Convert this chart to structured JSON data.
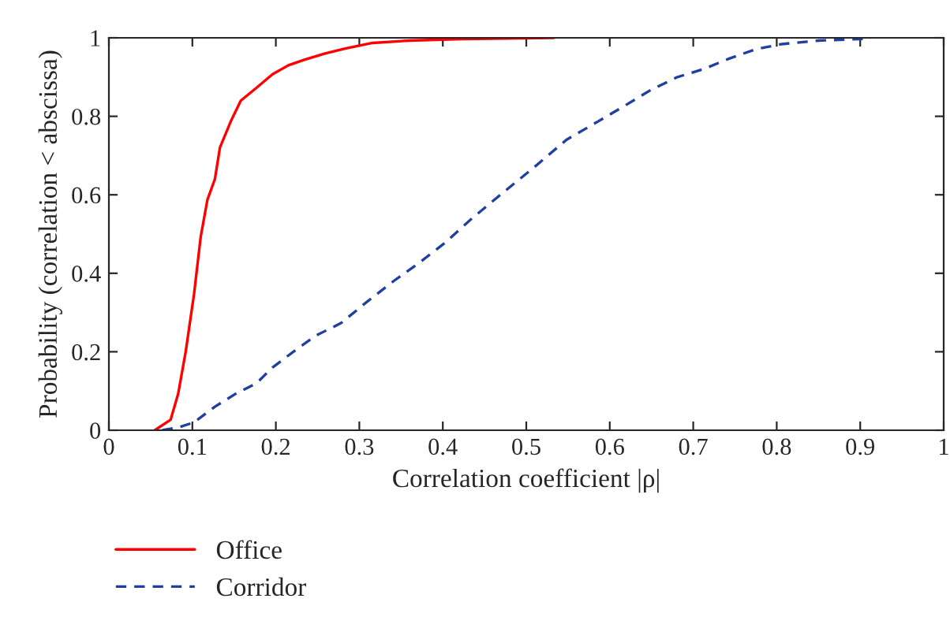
{
  "chart_data": {
    "type": "line",
    "xlabel": "Correlation coefficient |ρ|",
    "ylabel": "Probability (correlation < abscissa)",
    "xlim": [
      0,
      1
    ],
    "ylim": [
      0,
      1
    ],
    "xticks": [
      0,
      0.1,
      0.2,
      0.3,
      0.4,
      0.5,
      0.6,
      0.7,
      0.8,
      0.9,
      1
    ],
    "yticks": [
      0,
      0.2,
      0.4,
      0.6,
      0.8,
      1
    ],
    "grid": false,
    "legend": "bottom left",
    "series": [
      {
        "name": "Office",
        "color": "#ff0000",
        "line_style": "solid",
        "x": [
          0.055,
          0.074,
          0.083,
          0.092,
          0.102,
          0.11,
          0.118,
          0.127,
          0.133,
          0.146,
          0.158,
          0.177,
          0.196,
          0.215,
          0.234,
          0.259,
          0.284,
          0.316,
          0.36,
          0.423,
          0.533
        ],
        "values": [
          0,
          0.027,
          0.093,
          0.2,
          0.347,
          0.493,
          0.587,
          0.64,
          0.72,
          0.787,
          0.84,
          0.873,
          0.907,
          0.93,
          0.944,
          0.96,
          0.973,
          0.987,
          0.993,
          0.997,
          1
        ]
      },
      {
        "name": "Corridor",
        "color": "#2040a0",
        "line_style": "dashed",
        "x": [
          0.064,
          0.083,
          0.102,
          0.127,
          0.152,
          0.177,
          0.196,
          0.221,
          0.247,
          0.278,
          0.309,
          0.341,
          0.372,
          0.404,
          0.435,
          0.473,
          0.511,
          0.548,
          0.586,
          0.618,
          0.649,
          0.681,
          0.712,
          0.743,
          0.775,
          0.806,
          0.85,
          0.9,
          0.913
        ],
        "values": [
          0,
          0.007,
          0.02,
          0.06,
          0.093,
          0.12,
          0.16,
          0.2,
          0.24,
          0.273,
          0.327,
          0.38,
          0.427,
          0.48,
          0.54,
          0.607,
          0.673,
          0.74,
          0.787,
          0.827,
          0.867,
          0.9,
          0.92,
          0.947,
          0.971,
          0.984,
          0.993,
          0.997,
          1
        ]
      }
    ]
  }
}
